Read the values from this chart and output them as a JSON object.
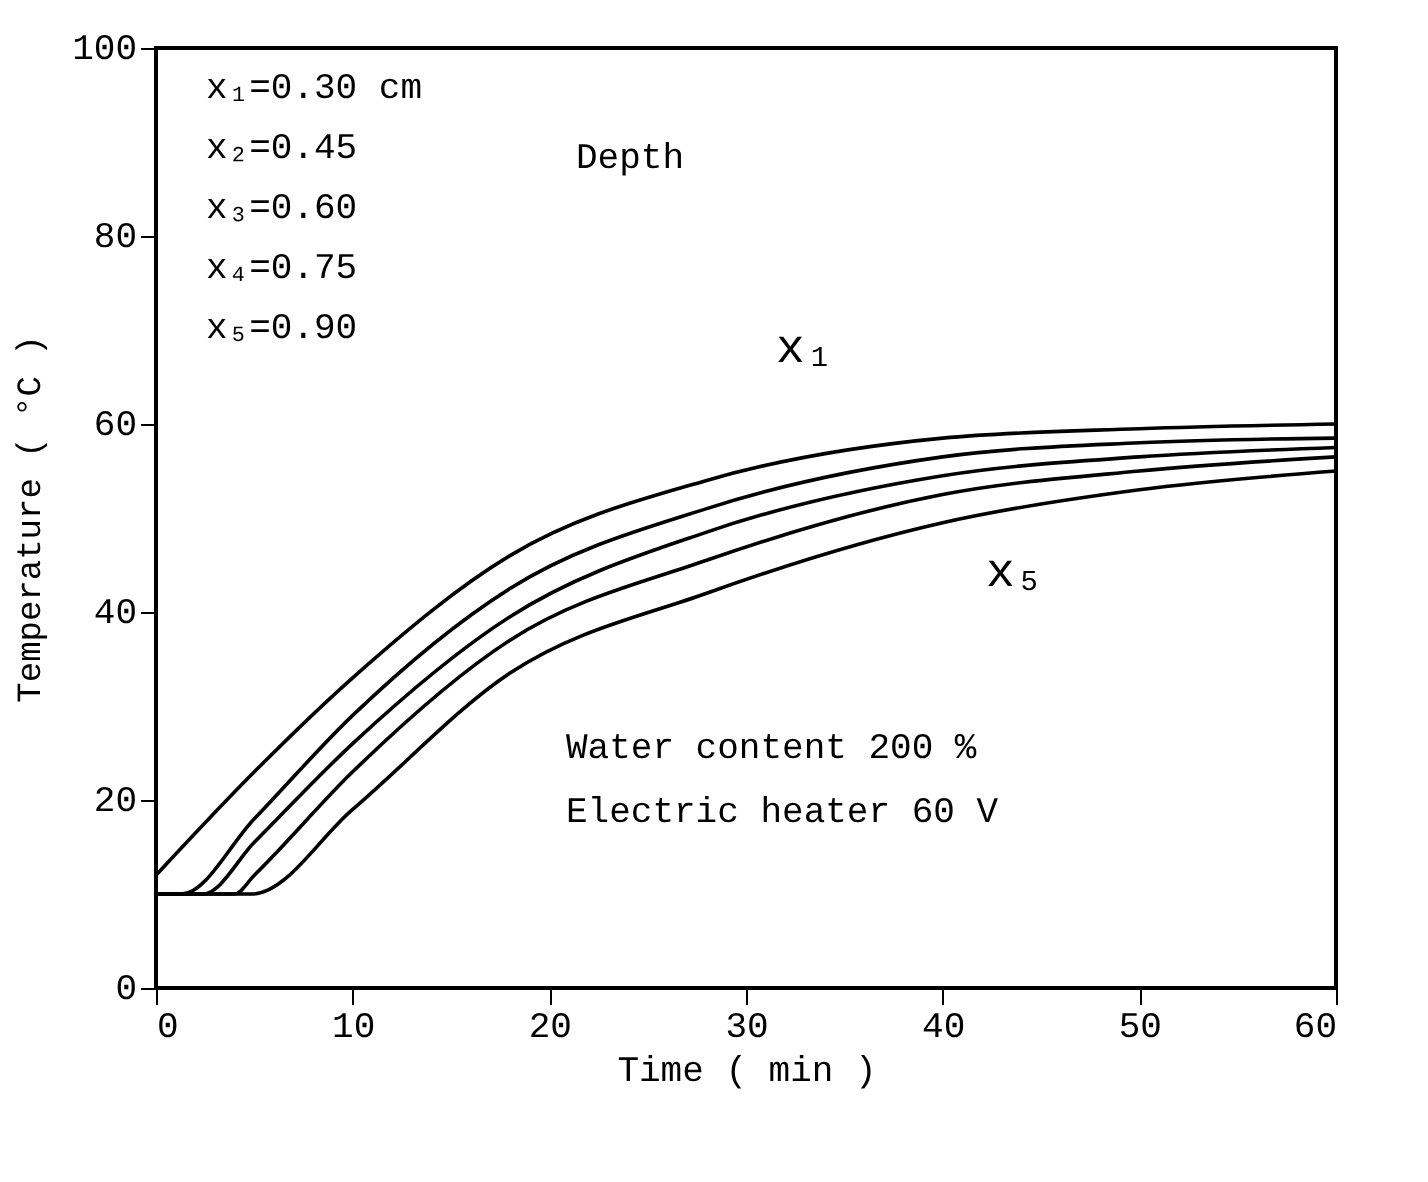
{
  "chart_data": {
    "type": "line",
    "xlabel": "Time  ( min )",
    "ylabel": "Temperature  ( °C )",
    "xlim": [
      0,
      60
    ],
    "xticks": [
      0,
      10,
      20,
      30,
      40,
      50,
      60
    ],
    "ylim": [
      0,
      100
    ],
    "yticks": [
      0,
      20,
      40,
      60,
      80,
      100
    ],
    "grid": false,
    "marker": "none",
    "line_style": "solid",
    "series": [
      {
        "color": "#000000",
        "x": [
          0,
          5,
          10,
          18,
          28,
          40,
          50,
          60
        ],
        "values": [
          12,
          23,
          33,
          46,
          54,
          58.5,
          59.5,
          60
        ]
      },
      {
        "color": "#000000",
        "x": [
          0,
          1.3,
          5,
          10,
          18,
          28,
          40,
          50,
          60
        ],
        "values": [
          10,
          10,
          18,
          29,
          42.5,
          51,
          56.5,
          58,
          58.5
        ]
      },
      {
        "color": "#000000",
        "x": [
          0,
          2.4,
          5,
          10,
          18,
          28,
          40,
          50,
          60
        ],
        "values": [
          10,
          10,
          15.5,
          26,
          39.5,
          48.5,
          54.5,
          56.5,
          57.5
        ]
      },
      {
        "color": "#000000",
        "x": [
          0,
          4,
          5,
          10,
          18,
          28,
          40,
          50,
          60
        ],
        "values": [
          10,
          10,
          12,
          23,
          37,
          45.5,
          52.5,
          55,
          56.5
        ]
      },
      {
        "color": "#000000",
        "x": [
          0,
          4.9,
          10,
          18,
          28,
          40,
          50,
          60
        ],
        "values": [
          10,
          10,
          19,
          33.5,
          42,
          49.5,
          53,
          55
        ]
      }
    ],
    "annotations": [
      "x₁=0.30 cm",
      "x₂=0.45",
      "x₃=0.60",
      "x₄=0.75",
      "x₅=0.90",
      "Depth",
      "Water content    200 %",
      "Electric heater   60 V",
      "x₁",
      "x₅"
    ]
  }
}
